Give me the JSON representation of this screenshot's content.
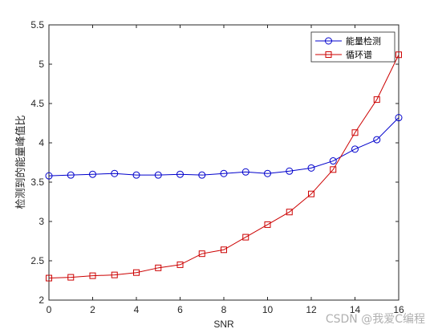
{
  "chart_data": {
    "type": "line",
    "xlabel": "SNR",
    "ylabel": "检测到的能量峰值比",
    "xlim": [
      0,
      16
    ],
    "ylim": [
      2,
      5.5
    ],
    "xticks": [
      0,
      2,
      4,
      6,
      8,
      10,
      12,
      14,
      16
    ],
    "yticks": [
      2,
      2.5,
      3,
      3.5,
      4,
      4.5,
      5,
      5.5
    ],
    "legend_position": "top-right",
    "grid": false,
    "x": [
      0,
      1,
      2,
      3,
      4,
      5,
      6,
      7,
      8,
      9,
      10,
      11,
      12,
      13,
      14,
      15,
      16
    ],
    "series": [
      {
        "name": "能量检测",
        "color": "#0000cc",
        "marker": "circle",
        "values": [
          3.58,
          3.59,
          3.6,
          3.61,
          3.59,
          3.59,
          3.6,
          3.59,
          3.61,
          3.63,
          3.61,
          3.64,
          3.68,
          3.77,
          3.92,
          4.04,
          4.32
        ]
      },
      {
        "name": "循环谱",
        "color": "#cc0000",
        "marker": "square",
        "values": [
          2.28,
          2.29,
          2.31,
          2.32,
          2.35,
          2.41,
          2.45,
          2.59,
          2.64,
          2.8,
          2.96,
          3.12,
          3.35,
          3.66,
          4.13,
          4.55,
          5.12
        ]
      }
    ]
  },
  "watermark": "CSDN @我爱C编程"
}
